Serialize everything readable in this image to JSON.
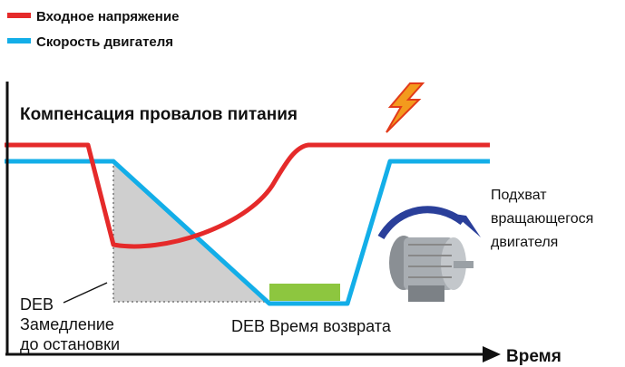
{
  "legend": [
    "Входное напряжение",
    "Скорость двигателя"
  ],
  "title": "Компенсация провалов питания",
  "annotations": {
    "catch": [
      "Подхват",
      "вращающегося",
      "двигателя"
    ],
    "deb": [
      "DEB",
      "Замедление",
      "до остановки"
    ],
    "return": "DEB Время возврата"
  },
  "x_axis_label": "Время"
}
